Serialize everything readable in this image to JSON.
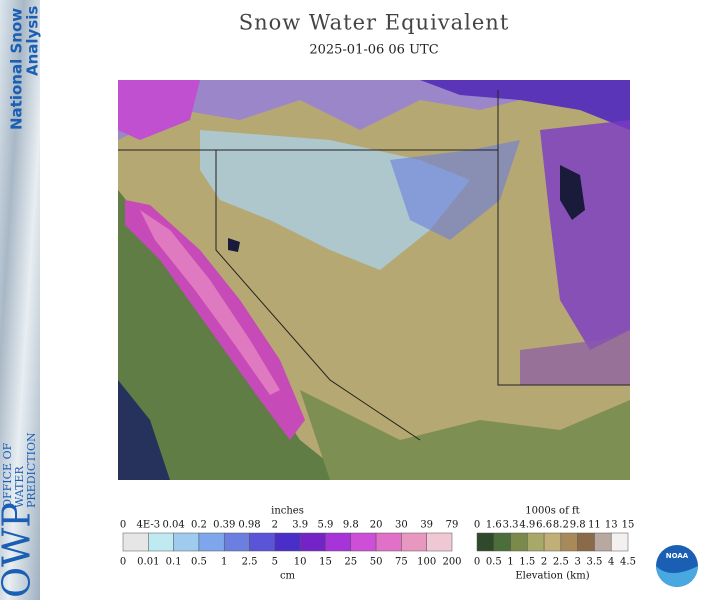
{
  "header": {
    "title": "Snow Water Equivalent",
    "subtitle": "2025-01-06 06 UTC"
  },
  "sidebar": {
    "brand": [
      "National Snow",
      "Analysis"
    ],
    "logo": "OWP",
    "office": [
      "OFFICE OF",
      "WATER",
      "PREDICTION"
    ]
  },
  "legend": {
    "swe": {
      "unit_top": "inches",
      "unit_bottom": "cm",
      "labels_top": [
        "0",
        "4E-3",
        "0.04",
        "0.2",
        "0.39",
        "0.98",
        "2",
        "3.9",
        "5.9",
        "9.8",
        "20",
        "30",
        "39",
        "79"
      ],
      "labels_bottom": [
        "0",
        "0.01",
        "0.1",
        "0.5",
        "1",
        "2.5",
        "5",
        "10",
        "15",
        "25",
        "50",
        "75",
        "100",
        "200"
      ],
      "colors": [
        "#e6e6e6",
        "#bfeaf2",
        "#9ecbee",
        "#7ea6ec",
        "#6a7fe0",
        "#5a55d8",
        "#4a2ec8",
        "#7424c6",
        "#a734d8",
        "#cd4fd8",
        "#e070c8",
        "#e898c0",
        "#efc8d4"
      ]
    },
    "elevation": {
      "unit_top": "1000s of ft",
      "unit_bottom": "Elevation (km)",
      "labels_top": [
        "0",
        "1.6",
        "3.3",
        "4.9",
        "6.6",
        "8.2",
        "9.8",
        "11",
        "13",
        "15"
      ],
      "labels_bottom": [
        "0",
        "0.5",
        "1",
        "1.5",
        "2",
        "2.5",
        "3",
        "3.5",
        "4",
        "4.5"
      ],
      "colors": [
        "#2f4a2a",
        "#4c6e3a",
        "#7a8a4a",
        "#a8a868",
        "#c0b078",
        "#a88a5a",
        "#8a6a48",
        "#b8a8a0",
        "#f4f0f0"
      ]
    }
  },
  "noaa": "NOAA"
}
